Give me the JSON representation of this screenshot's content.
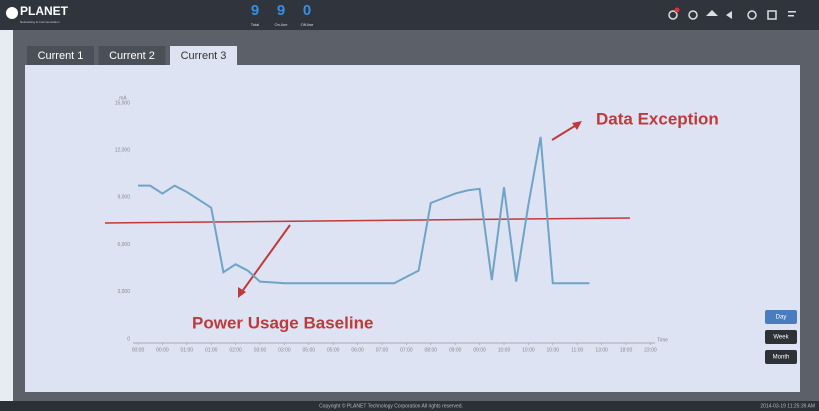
{
  "header": {
    "logo": "PLANET",
    "logo_tagline": "Networking & Communication",
    "counters": [
      {
        "value": 9,
        "label": "Total"
      },
      {
        "value": 9,
        "label": "On-line"
      },
      {
        "value": 0,
        "label": "Off-line"
      }
    ]
  },
  "tabs": [
    "Current 1",
    "Current 2",
    "Current 3"
  ],
  "chart_data": {
    "type": "line",
    "y_label": "mA",
    "x_label": "Time",
    "color": "#6fa3c8",
    "categories": [
      "00:00",
      null,
      "00:00",
      null,
      "01:00",
      null,
      "01:00",
      null,
      "02:00",
      null,
      "03:00",
      null,
      "03:00",
      null,
      "05:00",
      null,
      "05:00",
      null,
      "06:00",
      null,
      "07:00",
      null,
      "07:00",
      null,
      "08:00",
      null,
      "09:00",
      null,
      "09:00",
      null,
      "10:00",
      null,
      "10:00",
      null,
      "10:00",
      null,
      "11:00",
      null,
      "13:00",
      null,
      "18:00",
      null,
      "23:00"
    ],
    "values": [
      10000,
      10000,
      9500,
      10000,
      9600,
      9100,
      8600,
      4500,
      5000,
      4600,
      3900,
      3850,
      3800,
      3800,
      3800,
      3800,
      3800,
      3800,
      3800,
      3800,
      3800,
      3800,
      4200,
      4600,
      8900,
      9200,
      9500,
      9700,
      9800,
      4000,
      9900,
      3900,
      8800,
      13100,
      3800,
      3800,
      3800,
      3800,
      null,
      null,
      null,
      null,
      null
    ],
    "ylim": [
      0,
      15000
    ],
    "yticks": [
      0,
      {
        "value": 3000,
        "label": "3,000"
      },
      {
        "value": 6000,
        "label": "6,000"
      },
      {
        "value": 9000,
        "label": "9,000"
      },
      {
        "value": 12000,
        "label": "12,000"
      },
      {
        "value": 15000,
        "label": "15,000"
      }
    ]
  },
  "annotations": [
    "Data Exception",
    "Power Usage Baseline"
  ],
  "range_buttons": [
    "Day",
    "Week",
    "Month"
  ],
  "footer": {
    "copyright": "Copyright © PLANET Technology Corporation All rights reserved.",
    "timestamp": "2014-03-19 11:25:39 AM"
  }
}
